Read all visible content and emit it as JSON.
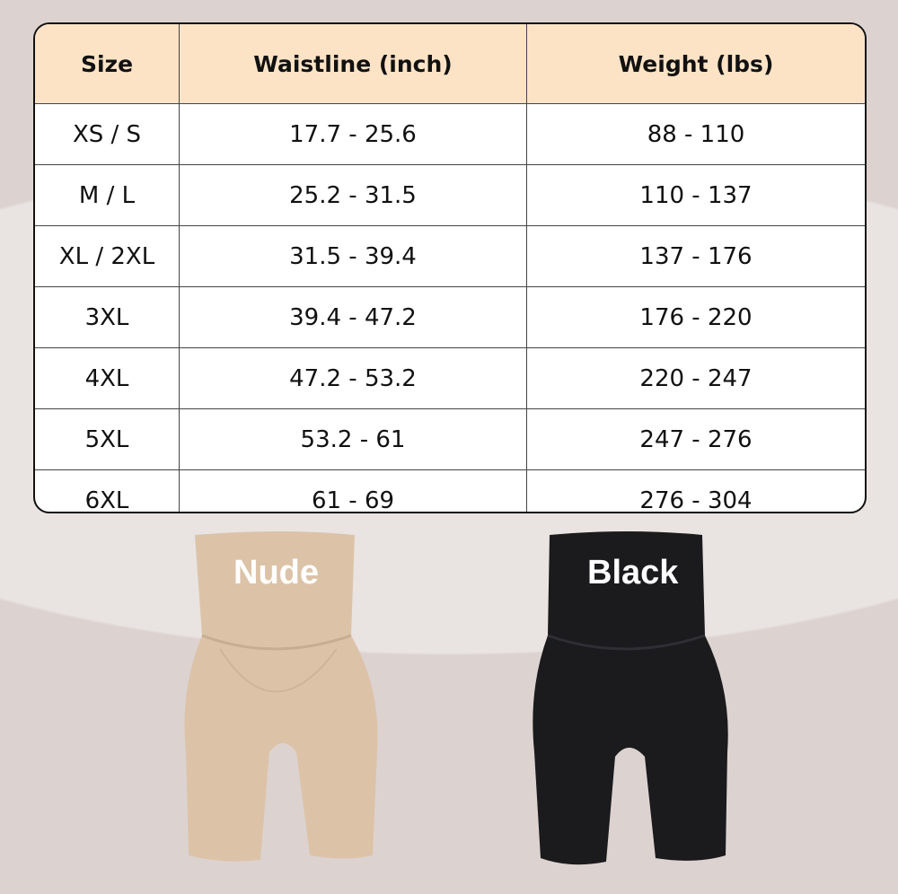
{
  "table": {
    "headers": [
      "Size",
      "Waistline (inch)",
      "Weight (lbs)"
    ],
    "rows": [
      [
        "XS / S",
        "17.7 - 25.6",
        "88 - 110"
      ],
      [
        "M / L",
        "25.2 - 31.5",
        "110 - 137"
      ],
      [
        "XL / 2XL",
        "31.5 - 39.4",
        "137 - 176"
      ],
      [
        "3XL",
        "39.4 - 47.2",
        "176 - 220"
      ],
      [
        "4XL",
        "47.2 - 53.2",
        "220 - 247"
      ],
      [
        "5XL",
        "53.2 - 61",
        "247 - 276"
      ],
      [
        "6XL",
        "61 - 69",
        "276 - 304"
      ]
    ]
  },
  "products": [
    {
      "label": "Nude",
      "color": "#dcc3a8"
    },
    {
      "label": "Black",
      "color": "#1b1b1e"
    }
  ],
  "colors": {
    "header_bg": "#fde3c6",
    "page_bg": "#dcd3d0"
  }
}
